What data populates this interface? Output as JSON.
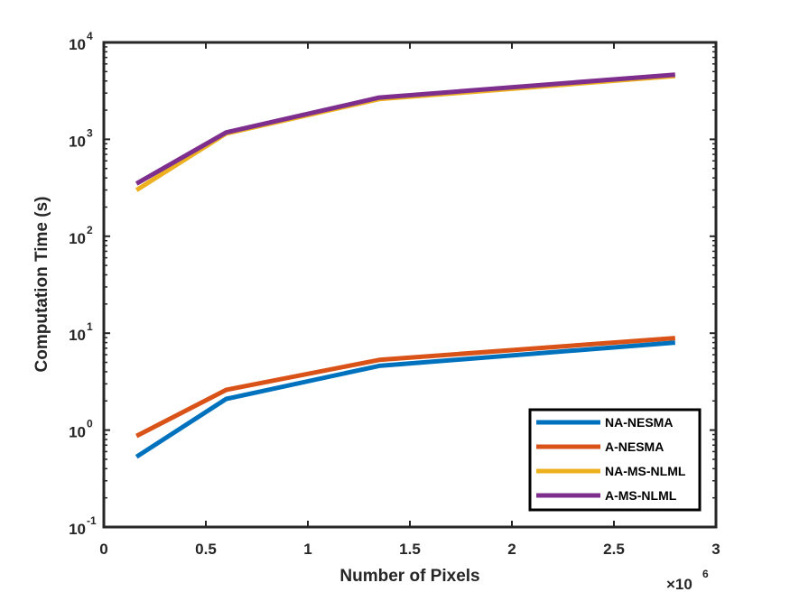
{
  "chart_data": {
    "type": "line",
    "title": "",
    "xlabel": "Number of Pixels",
    "ylabel": "Computation Time (s)",
    "x_exponent_label": "×10",
    "x_exponent": "6",
    "xlim": [
      0,
      3
    ],
    "ylim": [
      0.1,
      10000
    ],
    "yscale": "log",
    "grid": false,
    "legend_position": "bottom-right",
    "x_ticks": [
      {
        "value": 0,
        "label": "0"
      },
      {
        "value": 0.5,
        "label": "0.5"
      },
      {
        "value": 1,
        "label": "1"
      },
      {
        "value": 1.5,
        "label": "1.5"
      },
      {
        "value": 2,
        "label": "2"
      },
      {
        "value": 2.5,
        "label": "2.5"
      },
      {
        "value": 3,
        "label": "3"
      }
    ],
    "y_ticks": [
      {
        "value": 0.1,
        "base": "10",
        "exp": "-1"
      },
      {
        "value": 1,
        "base": "10",
        "exp": "0"
      },
      {
        "value": 10,
        "base": "10",
        "exp": "1"
      },
      {
        "value": 100,
        "base": "10",
        "exp": "2"
      },
      {
        "value": 1000,
        "base": "10",
        "exp": "3"
      },
      {
        "value": 10000,
        "base": "10",
        "exp": "4"
      }
    ],
    "x": [
      0.16,
      0.6,
      1.35,
      2.8
    ],
    "series": [
      {
        "name": "NA-NESMA",
        "color": "#0072BD",
        "values": [
          0.53,
          2.1,
          4.6,
          8.0
        ]
      },
      {
        "name": "A-NESMA",
        "color": "#D95319",
        "values": [
          0.87,
          2.6,
          5.3,
          8.9
        ]
      },
      {
        "name": "NA-MS-NLML",
        "color": "#EDB120",
        "values": [
          300,
          1150,
          2600,
          4500
        ]
      },
      {
        "name": "A-MS-NLML",
        "color": "#7E2F8E",
        "values": [
          350,
          1180,
          2700,
          4650
        ]
      }
    ]
  }
}
